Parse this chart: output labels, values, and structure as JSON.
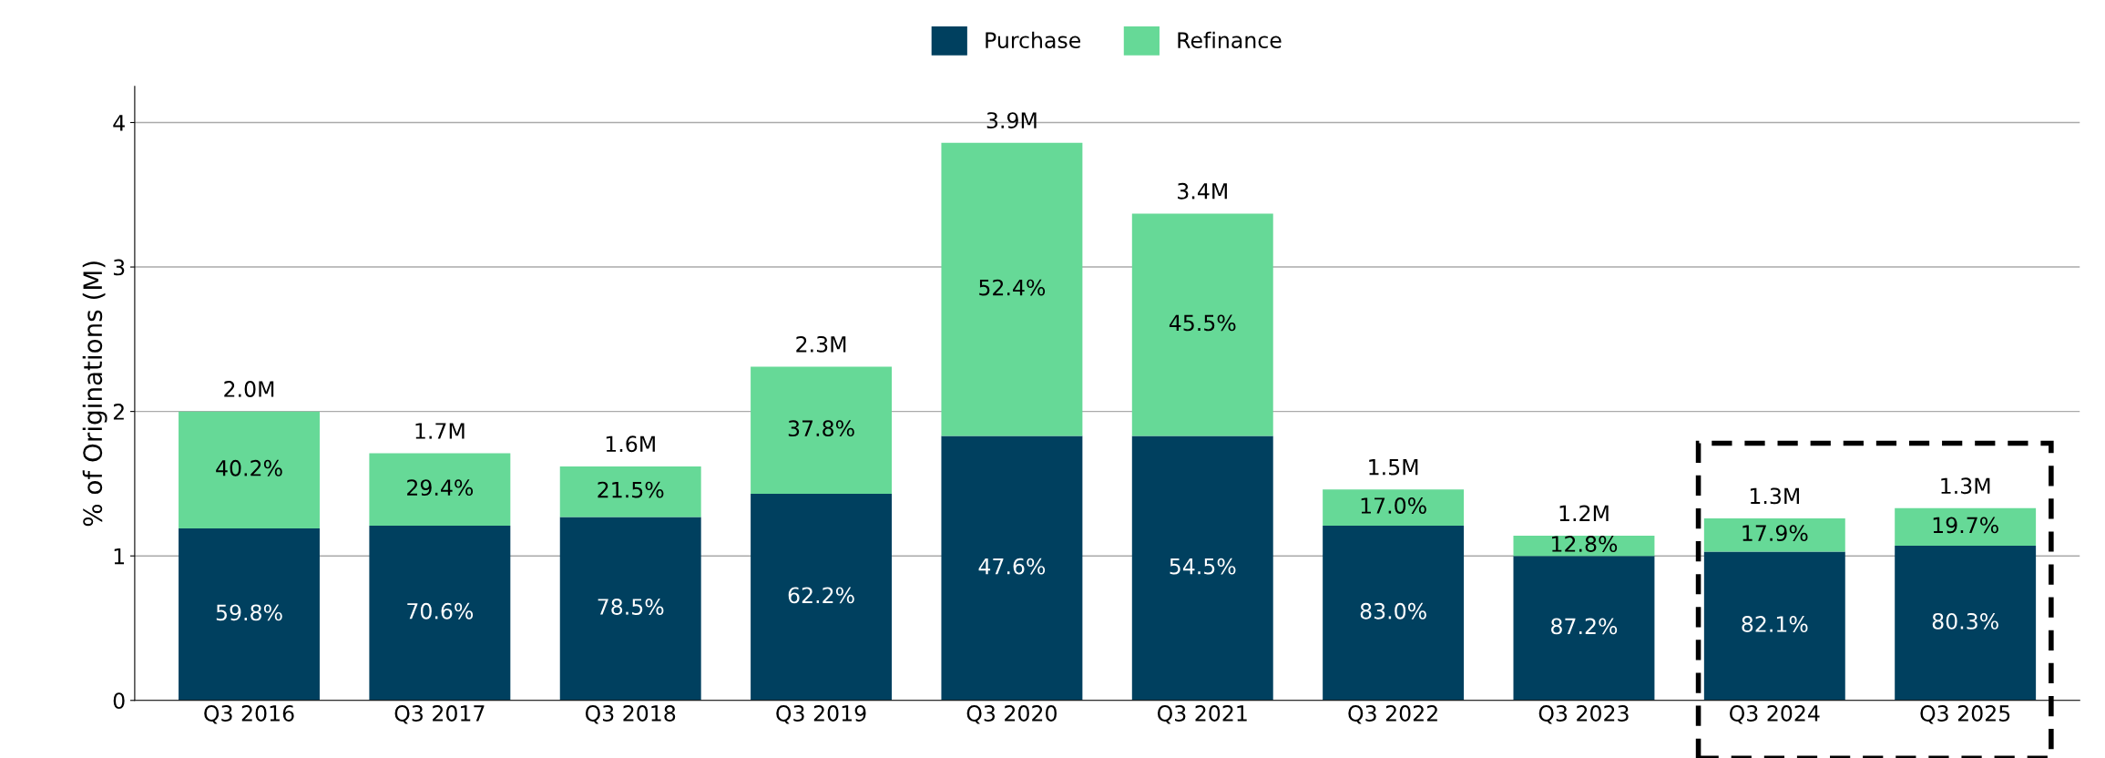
{
  "chart_data": {
    "type": "bar",
    "stacked": true,
    "ylabel": "% of Originations (M)",
    "categories": [
      "Q3 2016",
      "Q3 2017",
      "Q3 2018",
      "Q3 2019",
      "Q3 2020",
      "Q3 2021",
      "Q3 2022",
      "Q3 2023",
      "Q3 2024",
      "Q3 2025"
    ],
    "series": [
      {
        "name": "Purchase",
        "color": "#00405f",
        "values": [
          1.19,
          1.21,
          1.27,
          1.43,
          1.83,
          1.83,
          1.21,
          1.0,
          1.03,
          1.07
        ]
      },
      {
        "name": "Refinance",
        "color": "#66d997",
        "values": [
          0.81,
          0.5,
          0.35,
          0.88,
          2.03,
          1.54,
          0.25,
          0.14,
          0.23,
          0.26
        ]
      }
    ],
    "annotations": [
      "59.8%",
      "70.6%",
      "78.5%",
      "62.2%",
      "47.6%",
      "54.5%",
      "83.0%",
      "87.2%",
      "82.1%",
      "80.3%",
      "40.2%",
      "29.4%",
      "21.5%",
      "37.8%",
      "52.4%",
      "45.5%",
      "17.0%",
      "12.8%",
      "17.9%",
      "19.7%"
    ],
    "totals": [
      "2.0M",
      "1.7M",
      "1.6M",
      "2.3M",
      "3.9M",
      "3.4M",
      "1.5M",
      "1.2M",
      "1.3M",
      "1.3M"
    ],
    "ylim": [
      0,
      4.25
    ],
    "yticks": [
      0,
      1,
      2,
      3,
      4
    ],
    "grid": "y",
    "legend": "top"
  }
}
